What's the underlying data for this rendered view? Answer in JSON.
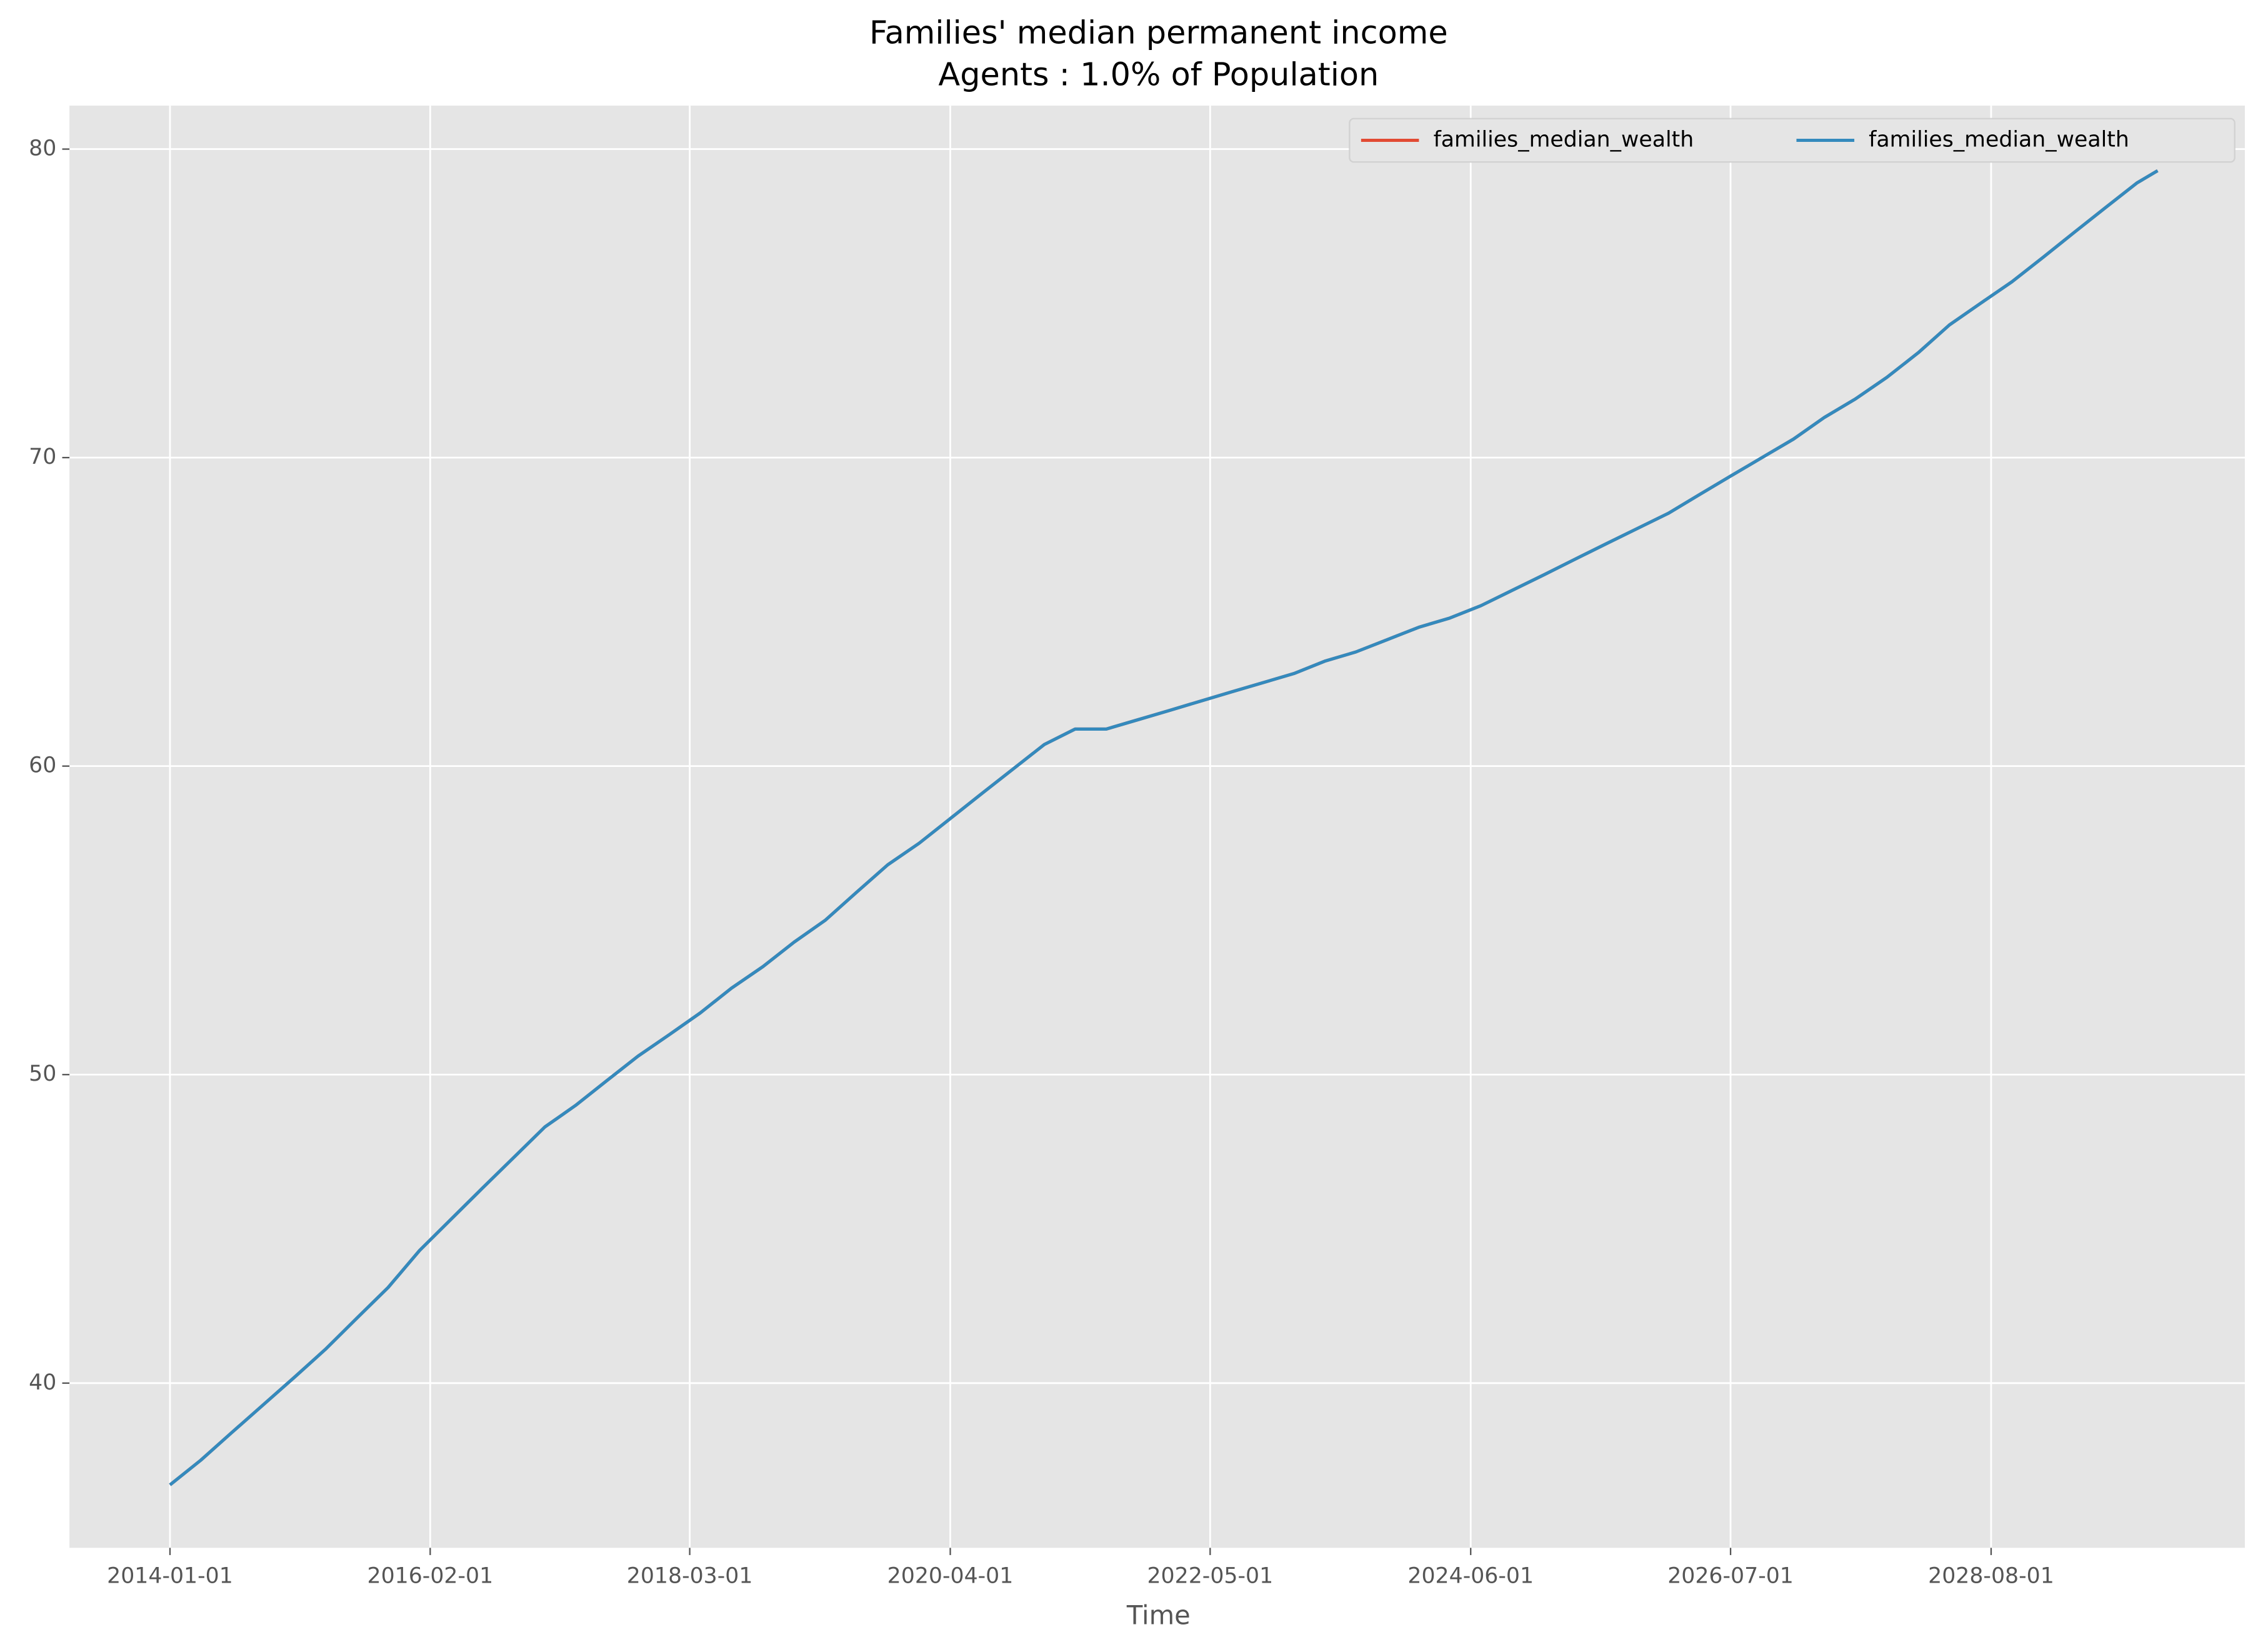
{
  "chart_data": {
    "type": "line",
    "title": "Families' median permanent income",
    "subtitle": "Agents : 1.0% of Population",
    "x_label": "Time",
    "x": [
      "2014-01-01",
      "2014-04-01",
      "2014-07-01",
      "2014-10-01",
      "2015-01-01",
      "2015-04-01",
      "2015-07-01",
      "2015-10-01",
      "2016-01-01",
      "2016-04-01",
      "2016-07-01",
      "2016-10-01",
      "2017-01-01",
      "2017-04-01",
      "2017-07-01",
      "2017-10-01",
      "2018-01-01",
      "2018-04-01",
      "2018-07-01",
      "2018-10-01",
      "2019-01-01",
      "2019-04-01",
      "2019-07-01",
      "2019-10-01",
      "2020-01-01",
      "2020-04-01",
      "2020-07-01",
      "2020-10-01",
      "2021-01-01",
      "2021-04-01",
      "2021-07-01",
      "2021-10-01",
      "2022-01-01",
      "2022-04-01",
      "2022-07-01",
      "2022-10-01",
      "2023-01-01",
      "2023-04-01",
      "2023-07-01",
      "2023-10-01",
      "2024-01-01",
      "2024-04-01",
      "2024-07-01",
      "2024-10-01",
      "2025-01-01",
      "2025-04-01",
      "2025-07-01",
      "2025-10-01",
      "2026-01-01",
      "2026-04-01",
      "2026-07-01",
      "2026-10-01",
      "2027-01-01",
      "2027-04-01",
      "2027-07-01",
      "2027-10-01",
      "2028-01-01",
      "2028-04-01",
      "2028-07-01",
      "2028-10-01",
      "2029-01-01",
      "2029-04-01",
      "2029-07-01",
      "2029-10-01",
      "2029-12-01"
    ],
    "series": [
      {
        "name": "families_median_wealth",
        "color": "#E24A33",
        "values": [
          36.7,
          37.5,
          38.4,
          39.3,
          40.2,
          41.1,
          42.1,
          43.1,
          44.3,
          45.3,
          46.3,
          47.3,
          48.3,
          49.0,
          49.8,
          50.6,
          51.3,
          52.0,
          52.8,
          53.5,
          54.3,
          55.0,
          55.9,
          56.8,
          57.5,
          58.3,
          59.1,
          59.9,
          60.7,
          61.2,
          61.2,
          61.5,
          61.8,
          62.1,
          62.4,
          62.7,
          63.0,
          63.4,
          63.7,
          64.1,
          64.5,
          64.8,
          65.2,
          65.7,
          66.2,
          66.7,
          67.2,
          67.7,
          68.2,
          68.8,
          69.4,
          70.0,
          70.6,
          71.3,
          71.9,
          72.6,
          73.4,
          74.3,
          75.0,
          75.7,
          76.5,
          77.3,
          78.1,
          78.9,
          79.3
        ]
      },
      {
        "name": "families_median_wealth",
        "color": "#348ABD",
        "values": [
          36.7,
          37.5,
          38.4,
          39.3,
          40.2,
          41.1,
          42.1,
          43.1,
          44.3,
          45.3,
          46.3,
          47.3,
          48.3,
          49.0,
          49.8,
          50.6,
          51.3,
          52.0,
          52.8,
          53.5,
          54.3,
          55.0,
          55.9,
          56.8,
          57.5,
          58.3,
          59.1,
          59.9,
          60.7,
          61.2,
          61.2,
          61.5,
          61.8,
          62.1,
          62.4,
          62.7,
          63.0,
          63.4,
          63.7,
          64.1,
          64.5,
          64.8,
          65.2,
          65.7,
          66.2,
          66.7,
          67.2,
          67.7,
          68.2,
          68.8,
          69.4,
          70.0,
          70.6,
          71.3,
          71.9,
          72.6,
          73.4,
          74.3,
          75.0,
          75.7,
          76.5,
          77.3,
          78.1,
          78.9,
          79.3
        ]
      }
    ],
    "xlim": [
      "2013-03-13",
      "2030-08-13"
    ],
    "xticks": [
      "2014-01-01",
      "2016-02-01",
      "2018-03-01",
      "2020-04-01",
      "2022-05-01",
      "2024-06-01",
      "2026-07-01",
      "2028-08-01"
    ],
    "ylim": [
      34.66,
      81.41
    ],
    "yticks": [
      40,
      50,
      60,
      70,
      80
    ],
    "grid": true,
    "legend": "upper right",
    "background": "#E5E5E5"
  }
}
